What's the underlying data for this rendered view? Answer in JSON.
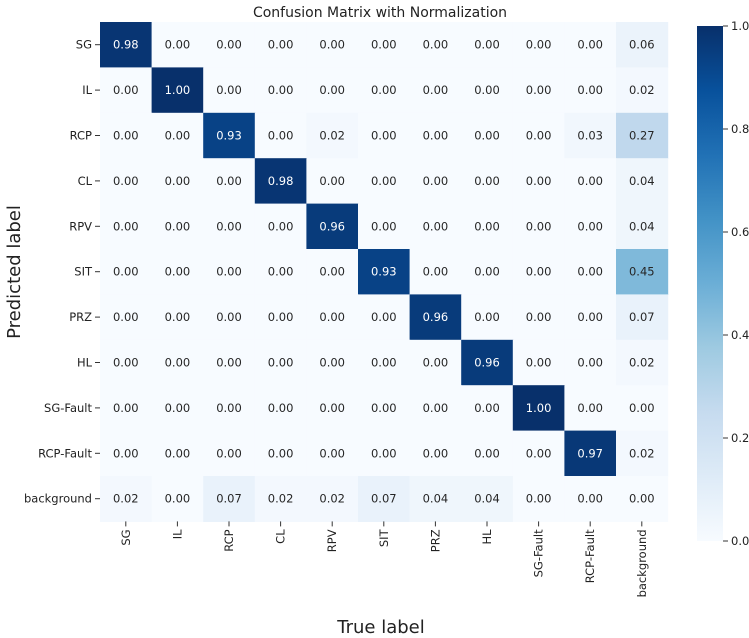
{
  "chart_data": {
    "type": "heatmap",
    "title": "Confusion Matrix with Normalization",
    "xlabel": "True label",
    "ylabel": "Predicted label",
    "x_categories": [
      "SG",
      "IL",
      "RCP",
      "CL",
      "RPV",
      "SIT",
      "PRZ",
      "HL",
      "SG-Fault",
      "RCP-Fault",
      "background"
    ],
    "y_categories": [
      "SG",
      "IL",
      "RCP",
      "CL",
      "RPV",
      "SIT",
      "PRZ",
      "HL",
      "SG-Fault",
      "RCP-Fault",
      "background"
    ],
    "values": [
      [
        0.98,
        0.0,
        0.0,
        0.0,
        0.0,
        0.0,
        0.0,
        0.0,
        0.0,
        0.0,
        0.06
      ],
      [
        0.0,
        1.0,
        0.0,
        0.0,
        0.0,
        0.0,
        0.0,
        0.0,
        0.0,
        0.0,
        0.02
      ],
      [
        0.0,
        0.0,
        0.93,
        0.0,
        0.02,
        0.0,
        0.0,
        0.0,
        0.0,
        0.03,
        0.27
      ],
      [
        0.0,
        0.0,
        0.0,
        0.98,
        0.0,
        0.0,
        0.0,
        0.0,
        0.0,
        0.0,
        0.04
      ],
      [
        0.0,
        0.0,
        0.0,
        0.0,
        0.96,
        0.0,
        0.0,
        0.0,
        0.0,
        0.0,
        0.04
      ],
      [
        0.0,
        0.0,
        0.0,
        0.0,
        0.0,
        0.93,
        0.0,
        0.0,
        0.0,
        0.0,
        0.45
      ],
      [
        0.0,
        0.0,
        0.0,
        0.0,
        0.0,
        0.0,
        0.96,
        0.0,
        0.0,
        0.0,
        0.07
      ],
      [
        0.0,
        0.0,
        0.0,
        0.0,
        0.0,
        0.0,
        0.0,
        0.96,
        0.0,
        0.0,
        0.02
      ],
      [
        0.0,
        0.0,
        0.0,
        0.0,
        0.0,
        0.0,
        0.0,
        0.0,
        1.0,
        0.0,
        0.0
      ],
      [
        0.0,
        0.0,
        0.0,
        0.0,
        0.0,
        0.0,
        0.0,
        0.0,
        0.0,
        0.97,
        0.02
      ],
      [
        0.02,
        0.0,
        0.07,
        0.02,
        0.02,
        0.07,
        0.04,
        0.04,
        0.0,
        0.0,
        0.0
      ]
    ],
    "colormap": "Blues",
    "vmin": 0.0,
    "vmax": 1.0,
    "colorbar_ticks": [
      0.0,
      0.2,
      0.4,
      0.6,
      0.8,
      1.0
    ],
    "colorbar_tick_labels": [
      "0.0",
      "0.2",
      "0.4",
      "0.6",
      "0.8",
      "1.0"
    ],
    "grid": false
  }
}
